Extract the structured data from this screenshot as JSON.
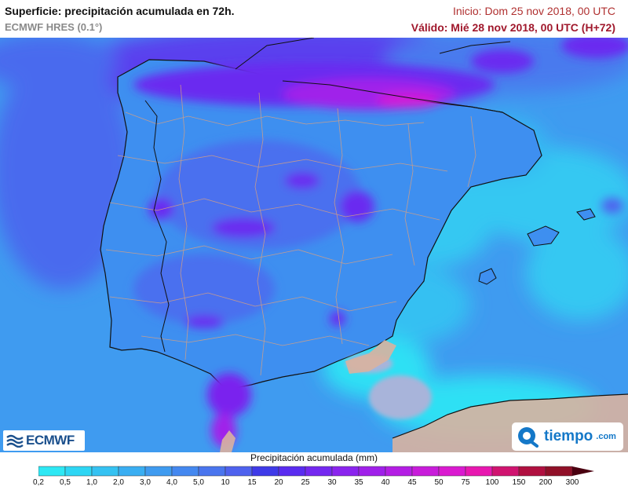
{
  "header": {
    "title": "Superficie: precipitación acumulada en 72h.",
    "subtitle": "ECMWF HRES (0.1°)",
    "init": "Inicio: Dom 25 nov 2018, 00 UTC",
    "valid": "Válido: Mié 28 nov 2018, 00 UTC (H+72)"
  },
  "logos": {
    "ecmwf": "ECMWF",
    "tiempo": "tiempo",
    "tiempo_suffix": ".com"
  },
  "legend": {
    "title": "Precipitación acumulada (mm)",
    "labels": [
      "0,2",
      "0,5",
      "1,0",
      "2,0",
      "3,0",
      "4,0",
      "5,0",
      "10",
      "15",
      "20",
      "25",
      "30",
      "35",
      "40",
      "45",
      "50",
      "75",
      "100",
      "150",
      "200",
      "300"
    ],
    "colors": [
      "#2ee8f4",
      "#2ed6f4",
      "#35c2f2",
      "#3aaef2",
      "#3f9bf0",
      "#4488f0",
      "#4a75ee",
      "#4f62ee",
      "#3f3ae8",
      "#5a2cf0",
      "#7428f0",
      "#8a24ee",
      "#a020ea",
      "#b41ee4",
      "#c81cda",
      "#da1ad0",
      "#e818b0",
      "#d01470",
      "#b01040",
      "#901028"
    ]
  },
  "map": {
    "region": "Península Ibérica",
    "colors": {
      "sea": "#3f9bf0",
      "land_base": "#3e8ff0",
      "wet": "#4f62ee",
      "very_wet": "#6a2cf0",
      "extreme": "#d01ad8",
      "dry_light": "#2ee8f4",
      "no_precip": "#a8b4da",
      "terrain": "#d9b3a0",
      "borders": "#d9a080",
      "coast": "#111111"
    }
  }
}
